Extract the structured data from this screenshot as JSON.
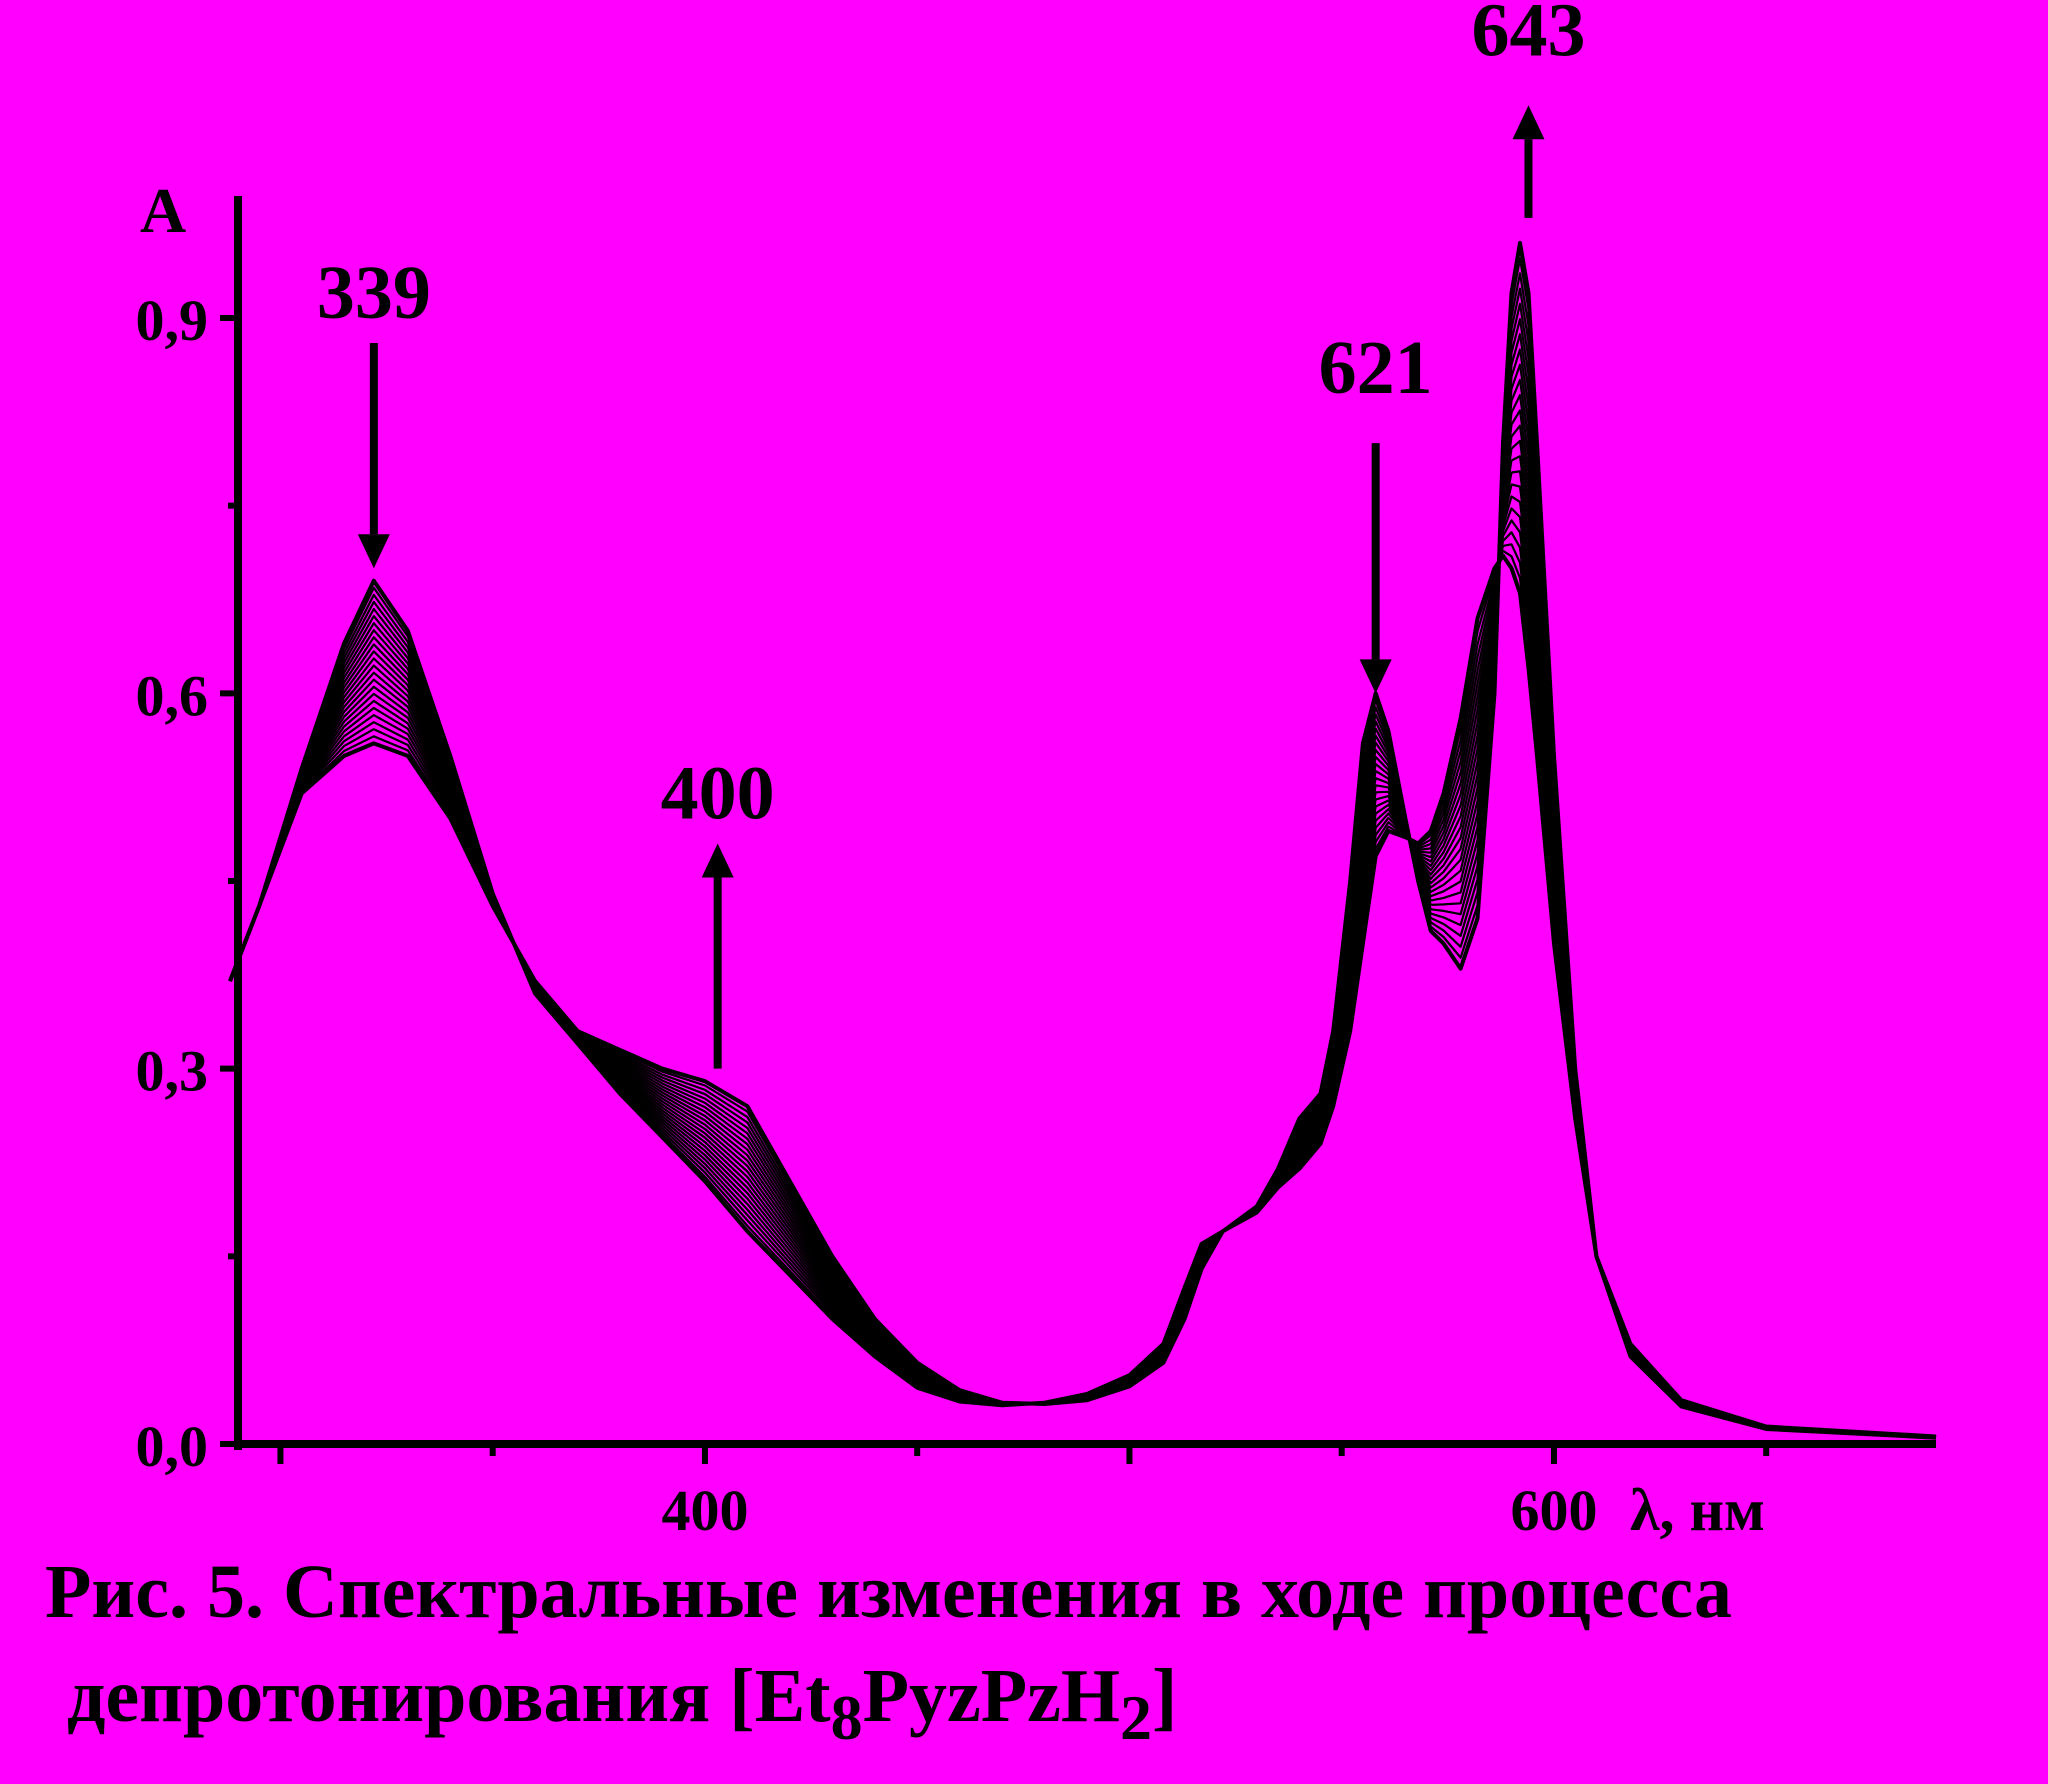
{
  "chart_data": {
    "type": "line",
    "y_axis_label": "A",
    "x_axis_label": "λ, нм",
    "xlim": [
      290,
      690
    ],
    "ylim": [
      0,
      1.0
    ],
    "x_ticks": [
      400,
      600
    ],
    "x_tick_labels": [
      "400",
      "600"
    ],
    "y_ticks": [
      0.0,
      0.3,
      0.6,
      0.9
    ],
    "y_tick_labels": [
      "0,0",
      "0,3",
      "0,6",
      "0,9"
    ],
    "grid": false,
    "series_count": 24,
    "first_spectrum": [
      [
        285,
        0.37
      ],
      [
        295,
        0.43
      ],
      [
        305,
        0.54
      ],
      [
        315,
        0.64
      ],
      [
        322,
        0.69
      ],
      [
        330,
        0.65
      ],
      [
        340,
        0.55
      ],
      [
        350,
        0.44
      ],
      [
        360,
        0.36
      ],
      [
        370,
        0.32
      ],
      [
        380,
        0.28
      ],
      [
        390,
        0.245
      ],
      [
        400,
        0.21
      ],
      [
        410,
        0.17
      ],
      [
        420,
        0.135
      ],
      [
        430,
        0.1
      ],
      [
        440,
        0.07
      ],
      [
        450,
        0.045
      ],
      [
        460,
        0.034
      ],
      [
        470,
        0.031
      ],
      [
        480,
        0.033
      ],
      [
        490,
        0.04
      ],
      [
        500,
        0.055
      ],
      [
        508,
        0.08
      ],
      [
        513,
        0.125
      ],
      [
        517,
        0.16
      ],
      [
        522,
        0.17
      ],
      [
        530,
        0.19
      ],
      [
        535,
        0.22
      ],
      [
        540,
        0.26
      ],
      [
        545,
        0.28
      ],
      [
        548,
        0.33
      ],
      [
        552,
        0.45
      ],
      [
        555,
        0.56
      ],
      [
        558,
        0.6
      ],
      [
        561,
        0.57
      ],
      [
        565,
        0.5
      ],
      [
        568,
        0.45
      ],
      [
        571,
        0.41
      ],
      [
        574,
        0.4
      ],
      [
        578,
        0.38
      ],
      [
        582,
        0.42
      ],
      [
        586,
        0.6
      ],
      [
        588,
        0.8
      ],
      [
        590,
        0.92
      ],
      [
        592,
        0.96
      ],
      [
        594,
        0.92
      ],
      [
        596,
        0.8
      ],
      [
        600,
        0.55
      ],
      [
        605,
        0.3
      ],
      [
        610,
        0.15
      ],
      [
        618,
        0.07
      ],
      [
        630,
        0.03
      ],
      [
        650,
        0.012
      ],
      [
        690,
        0.005
      ]
    ],
    "last_spectrum": [
      [
        285,
        0.37
      ],
      [
        295,
        0.43
      ],
      [
        305,
        0.52
      ],
      [
        315,
        0.55
      ],
      [
        322,
        0.56
      ],
      [
        330,
        0.55
      ],
      [
        340,
        0.5
      ],
      [
        350,
        0.43
      ],
      [
        360,
        0.37
      ],
      [
        370,
        0.33
      ],
      [
        380,
        0.315
      ],
      [
        390,
        0.3
      ],
      [
        400,
        0.29
      ],
      [
        410,
        0.27
      ],
      [
        420,
        0.21
      ],
      [
        430,
        0.15
      ],
      [
        440,
        0.1
      ],
      [
        450,
        0.065
      ],
      [
        460,
        0.043
      ],
      [
        470,
        0.033
      ],
      [
        480,
        0.032
      ],
      [
        490,
        0.035
      ],
      [
        500,
        0.046
      ],
      [
        508,
        0.065
      ],
      [
        513,
        0.1
      ],
      [
        517,
        0.14
      ],
      [
        522,
        0.17
      ],
      [
        530,
        0.185
      ],
      [
        535,
        0.205
      ],
      [
        540,
        0.22
      ],
      [
        545,
        0.24
      ],
      [
        548,
        0.27
      ],
      [
        552,
        0.33
      ],
      [
        555,
        0.4
      ],
      [
        558,
        0.47
      ],
      [
        561,
        0.49
      ],
      [
        565,
        0.485
      ],
      [
        568,
        0.48
      ],
      [
        571,
        0.49
      ],
      [
        574,
        0.52
      ],
      [
        578,
        0.58
      ],
      [
        582,
        0.66
      ],
      [
        586,
        0.7
      ],
      [
        588,
        0.71
      ],
      [
        590,
        0.7
      ],
      [
        592,
        0.68
      ],
      [
        594,
        0.62
      ],
      [
        596,
        0.55
      ],
      [
        600,
        0.4
      ],
      [
        605,
        0.26
      ],
      [
        610,
        0.15
      ],
      [
        618,
        0.08
      ],
      [
        630,
        0.035
      ],
      [
        650,
        0.014
      ],
      [
        690,
        0.006
      ]
    ],
    "annotations": [
      {
        "label": "339",
        "x": 322,
        "direction": "down",
        "arrow_from_y": 0.88,
        "arrow_to_y": 0.7,
        "label_y": 0.9
      },
      {
        "label": "400",
        "x": 403,
        "direction": "up",
        "arrow_from_y": 0.3,
        "arrow_to_y": 0.48,
        "label_y": 0.5
      },
      {
        "label": "621",
        "x": 558,
        "direction": "down",
        "arrow_from_y": 0.8,
        "arrow_to_y": 0.6,
        "label_y": 0.84
      },
      {
        "label": "643",
        "x": 594,
        "direction": "up",
        "arrow_from_y": 0.98,
        "arrow_to_y": 1.07,
        "label_y": 1.11
      }
    ]
  },
  "caption": {
    "line1": "Рис. 5. Спектральные изменения в ходе процесса",
    "line2_prefix": "депротонирования  [Et",
    "line2_sub1": "8",
    "line2_mid": "PyzPzH",
    "line2_sub2": "2",
    "line2_suffix": "]"
  }
}
